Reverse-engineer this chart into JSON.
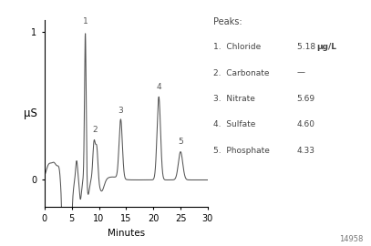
{
  "xlabel": "Minutes",
  "ylabel": "μS",
  "xlim": [
    0,
    30
  ],
  "ylim": [
    -0.18,
    1.08
  ],
  "yticks": [
    0,
    1
  ],
  "xticks": [
    0,
    5,
    10,
    15,
    20,
    25,
    30
  ],
  "line_color": "#555555",
  "background_color": "#ffffff",
  "annotation_color": "#555555",
  "figure_id": "14958",
  "legend_lines": [
    "Peaks:",
    "1.  Chloride",
    "2.  Carbonate",
    "3.  Nitrate",
    "4.  Sulfate",
    "5.  Phosphate"
  ],
  "legend_values": [
    "",
    "5.18 μg/L",
    "—",
    "5.69",
    "4.60",
    "4.33"
  ],
  "peak_annotations": [
    [
      7.5,
      1.0,
      "1"
    ],
    [
      9.3,
      0.27,
      "2"
    ],
    [
      14.0,
      0.4,
      "3"
    ],
    [
      21.0,
      0.56,
      "4"
    ],
    [
      25.0,
      0.19,
      "5"
    ]
  ]
}
